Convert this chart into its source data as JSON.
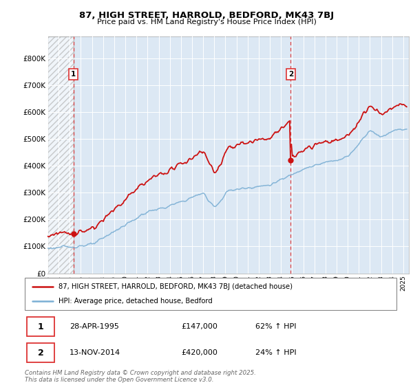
{
  "title1": "87, HIGH STREET, HARROLD, BEDFORD, MK43 7BJ",
  "title2": "Price paid vs. HM Land Registry's House Price Index (HPI)",
  "xlim_start": 1993.0,
  "xlim_end": 2025.5,
  "ylim_min": 0,
  "ylim_max": 880000,
  "sale1_year": 1995.33,
  "sale1_price": 147000,
  "sale2_year": 2014.87,
  "sale2_price": 420000,
  "hpi_color": "#7bafd4",
  "price_color": "#cc1111",
  "vline_color": "#dd3333",
  "grid_color": "#c8d8e8",
  "bg_color": "#dce8f4",
  "legend_line1": "87, HIGH STREET, HARROLD, BEDFORD, MK43 7BJ (detached house)",
  "legend_line2": "HPI: Average price, detached house, Bedford",
  "annotation1_date": "28-APR-1995",
  "annotation1_price": "£147,000",
  "annotation1_hpi": "62% ↑ HPI",
  "annotation2_date": "13-NOV-2014",
  "annotation2_price": "£420,000",
  "annotation2_hpi": "24% ↑ HPI",
  "footer": "Contains HM Land Registry data © Crown copyright and database right 2025.\nThis data is licensed under the Open Government Licence v3.0.",
  "ytick_labels": [
    "£0",
    "£100K",
    "£200K",
    "£300K",
    "£400K",
    "£500K",
    "£600K",
    "£700K",
    "£800K"
  ],
  "ytick_values": [
    0,
    100000,
    200000,
    300000,
    400000,
    500000,
    600000,
    700000,
    800000
  ]
}
